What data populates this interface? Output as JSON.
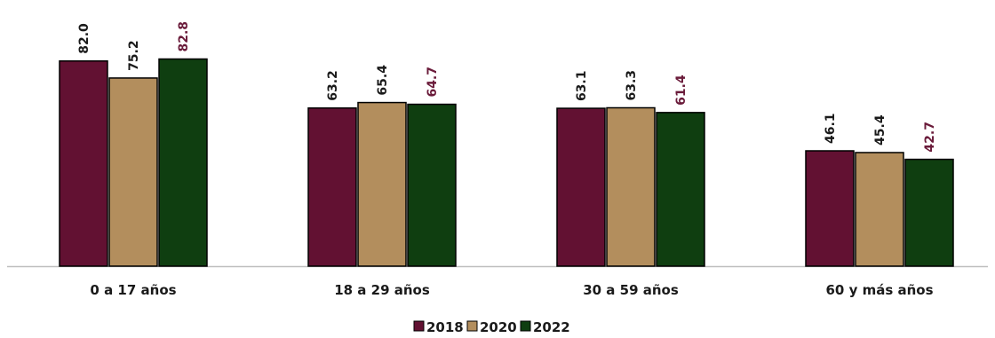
{
  "chart_data": {
    "type": "bar",
    "categories": [
      "0 a 17 años",
      "18 a 29 años",
      "30 a 59 años",
      "60 y más años"
    ],
    "series": [
      {
        "name": "2018",
        "values": [
          82.0,
          63.2,
          63.1,
          46.1
        ],
        "color": "#621132",
        "label_color": "#1a1a1a"
      },
      {
        "name": "2020",
        "values": [
          75.2,
          65.4,
          63.3,
          45.4
        ],
        "color": "#b38e5d",
        "label_color": "#1a1a1a"
      },
      {
        "name": "2022",
        "values": [
          82.8,
          64.7,
          61.4,
          42.7
        ],
        "color": "#0f3e10",
        "label_color": "#6a1b3a"
      }
    ],
    "value_labels": [
      [
        "82.0",
        "63.2",
        "63.1",
        "46.1"
      ],
      [
        "75.2",
        "65.4",
        "63.3",
        "45.4"
      ],
      [
        "82.8",
        "64.7",
        "61.4",
        "42.7"
      ]
    ],
    "title": "",
    "xlabel": "",
    "ylabel": "",
    "ylim": [
      0,
      85
    ],
    "grid": false,
    "legend_position": "bottom-center"
  }
}
